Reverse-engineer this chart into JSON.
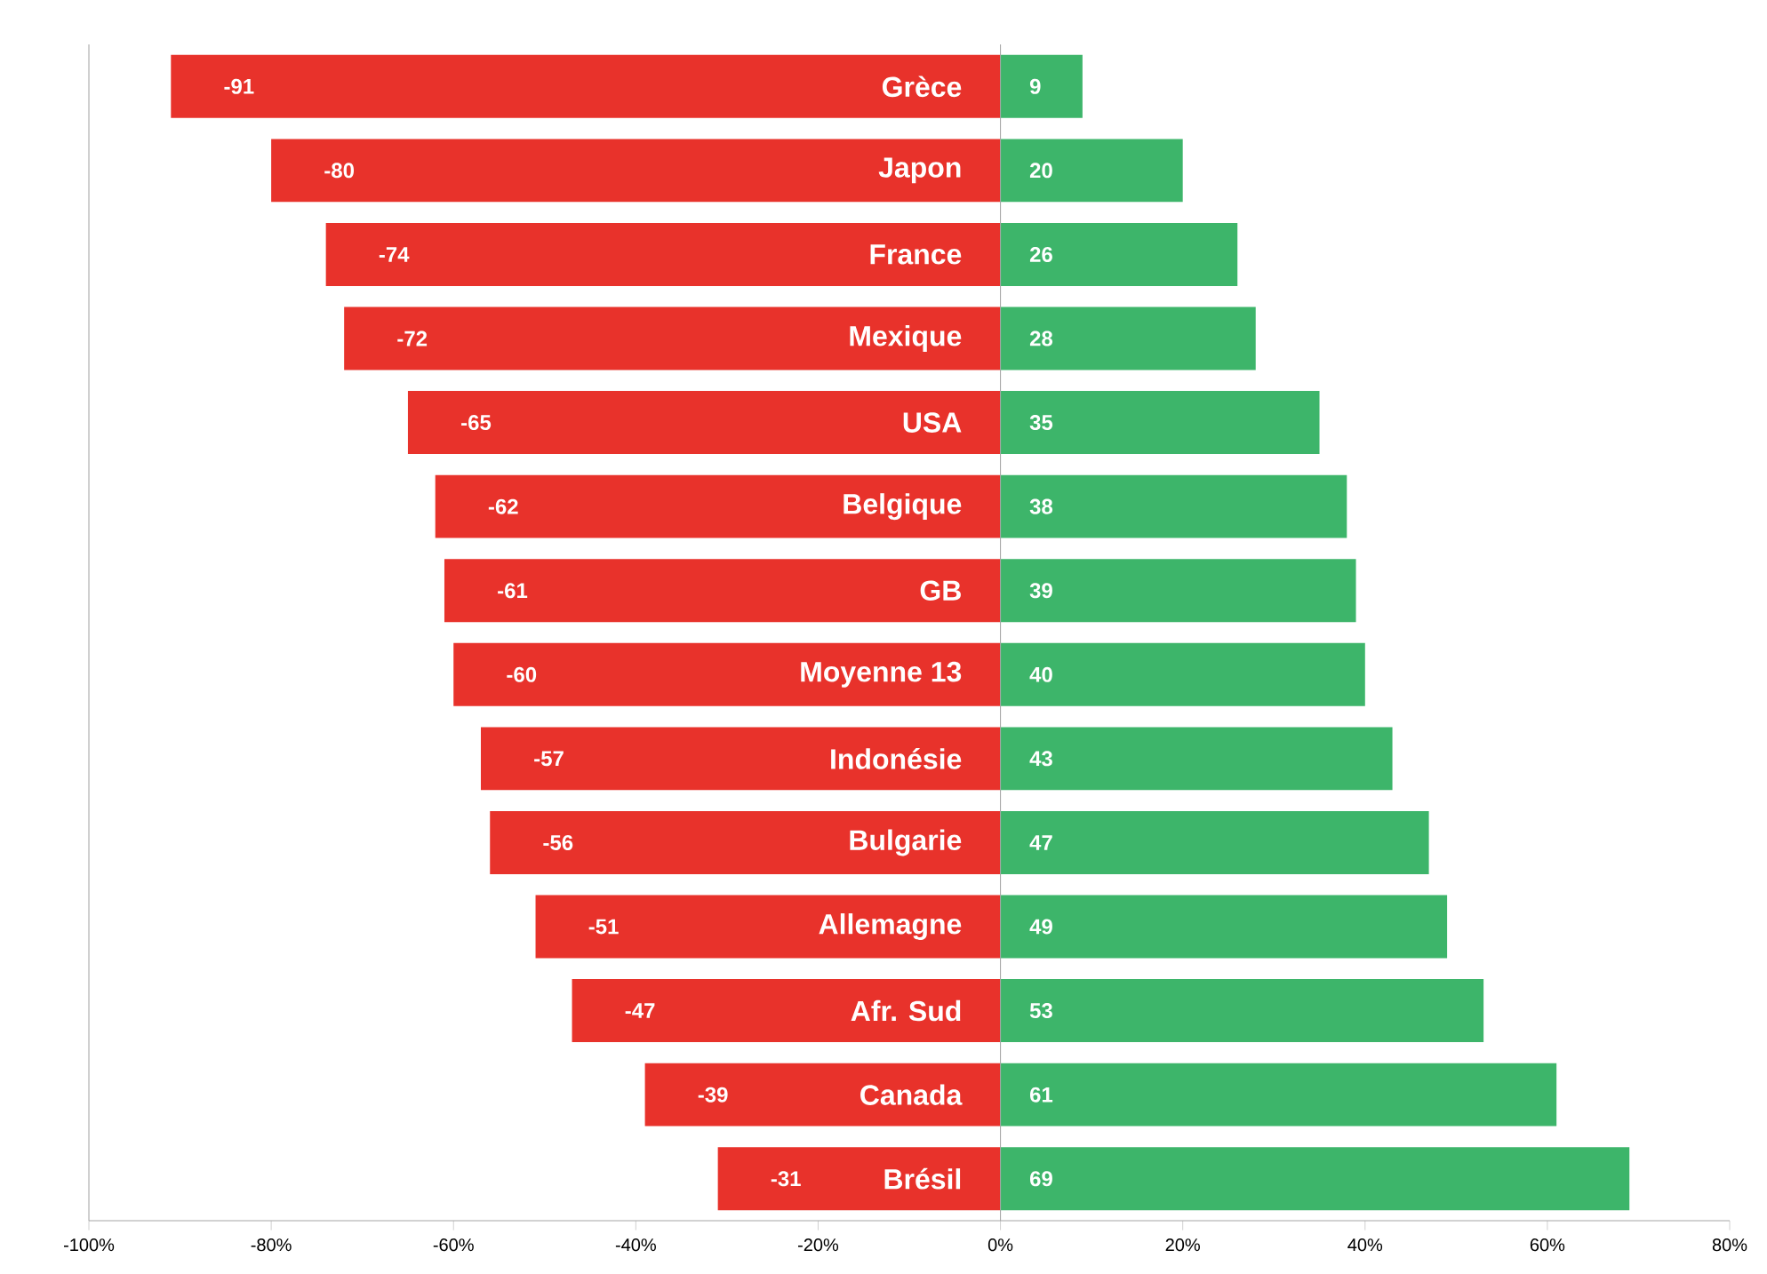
{
  "chart_data": {
    "type": "bar",
    "orientation": "horizontal",
    "categories": [
      "Grèce",
      "Japon",
      "France",
      "Mexique",
      "USA",
      "Belgique",
      "GB",
      "Moyenne 13",
      "Indonésie",
      "Bulgarie",
      "Allemagne",
      "Afr. Sud",
      "Canada",
      "Brésil"
    ],
    "series": [
      {
        "color": "#e8322b",
        "values": [
          -91,
          -80,
          -74,
          -72,
          -65,
          -62,
          -61,
          -60,
          -57,
          -56,
          -51,
          -47,
          -39,
          -31
        ]
      },
      {
        "color": "#3db56a",
        "values": [
          9,
          20,
          26,
          28,
          35,
          38,
          39,
          40,
          43,
          47,
          49,
          53,
          61,
          69
        ]
      }
    ],
    "xlim": [
      -100,
      80
    ],
    "xticks": [
      {
        "value": -100,
        "label": "-100%"
      },
      {
        "value": -80,
        "label": "-80%"
      },
      {
        "value": -60,
        "label": "-60%"
      },
      {
        "value": -40,
        "label": "-40%"
      },
      {
        "value": -20,
        "label": "-20%"
      },
      {
        "value": 0,
        "label": "0%"
      },
      {
        "value": 20,
        "label": "20%"
      },
      {
        "value": 40,
        "label": "40%"
      },
      {
        "value": 60,
        "label": "60%"
      },
      {
        "value": 80,
        "label": "80%"
      }
    ],
    "data_labels": true,
    "grid": false,
    "stacked": true
  }
}
